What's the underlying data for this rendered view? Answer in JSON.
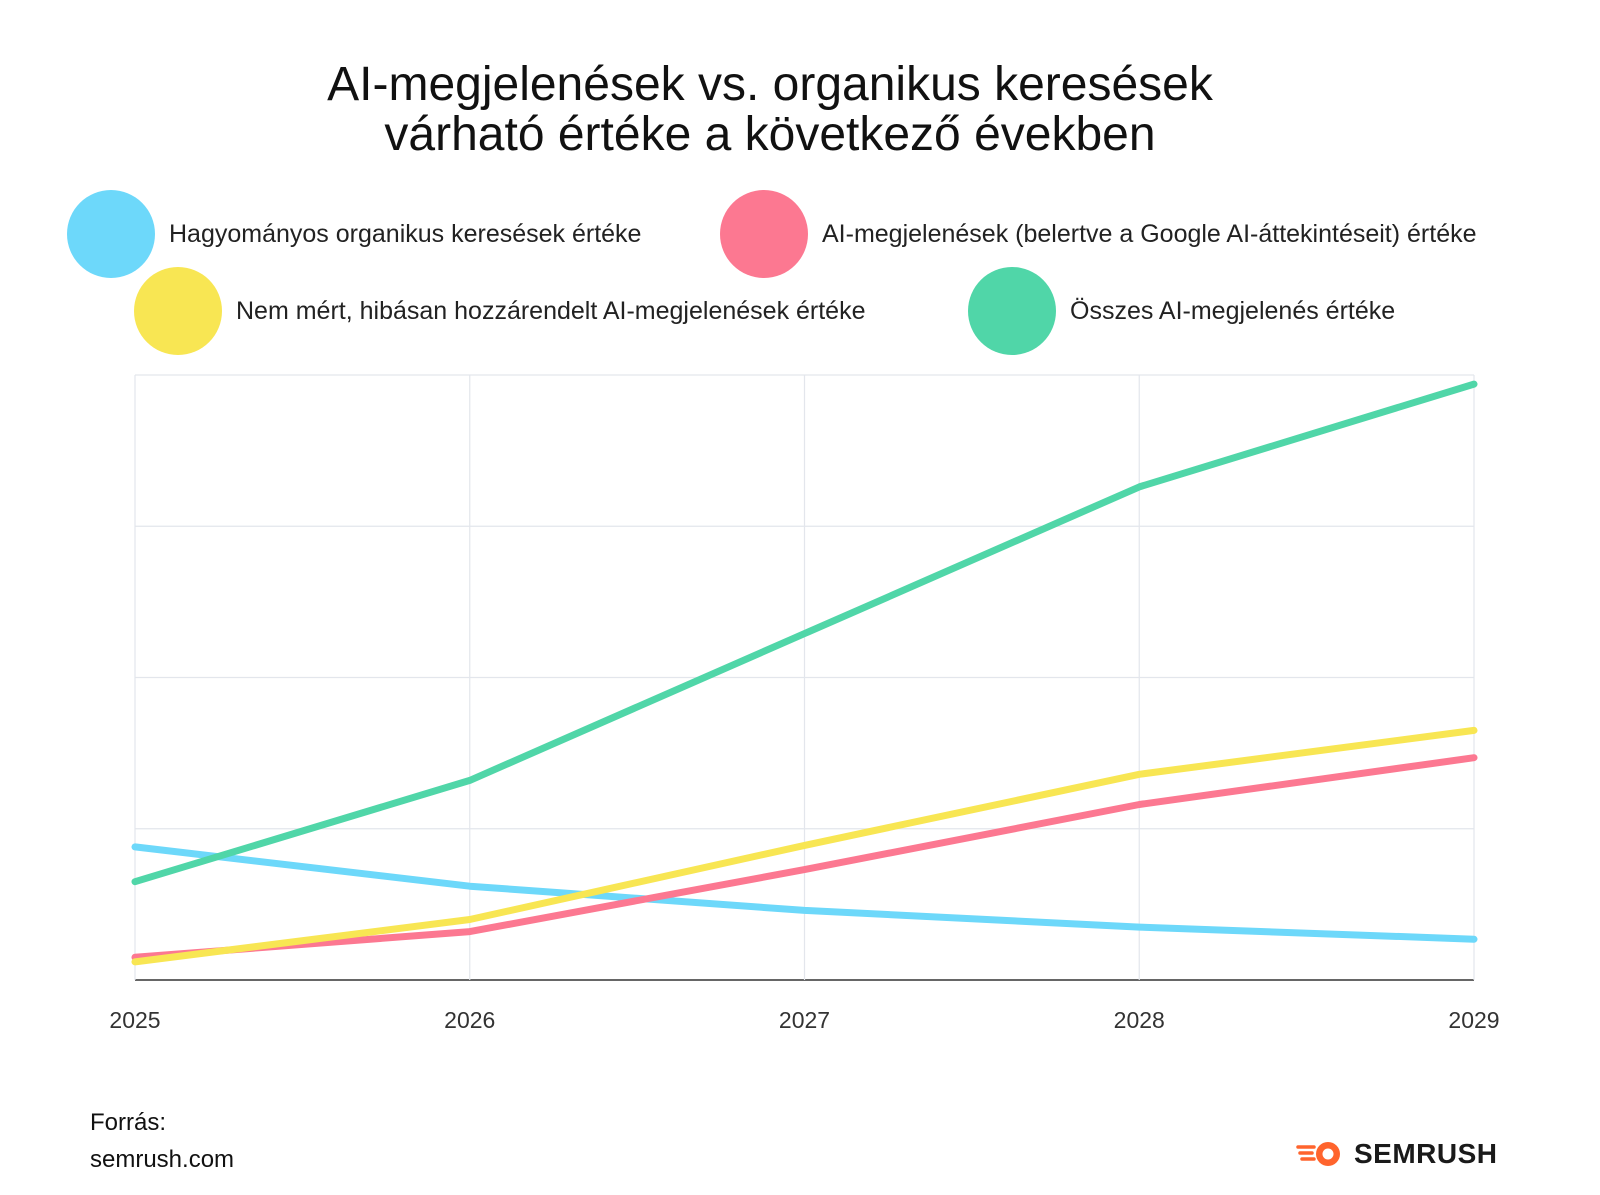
{
  "title": {
    "line1": "AI-megjelenések vs. organikus keresések",
    "line2": "várható értéke a következő években"
  },
  "legend": [
    {
      "label": "Hagyományos organikus keresések értéke",
      "color": "#6dd8fa"
    },
    {
      "label": "AI-megjelenések (belertve a Google AI-áttekintéseit) értéke",
      "color": "#fc7891"
    },
    {
      "label": "Nem mért, hibásan hozzárendelt AI-megjelenések értéke",
      "color": "#f8e653"
    },
    {
      "label": "Összes AI-megjelenés értéke",
      "color": "#50d6a8"
    }
  ],
  "chart_data": {
    "type": "line",
    "x": [
      "2025",
      "2026",
      "2027",
      "2028",
      "2029"
    ],
    "ylim": [
      0,
      4
    ],
    "grid": true,
    "legend_position": "top",
    "series": [
      {
        "name": "Hagyományos organikus keresések értéke",
        "color": "#6dd8fa",
        "values": [
          0.88,
          0.62,
          0.46,
          0.35,
          0.27
        ]
      },
      {
        "name": "AI-megjelenések (belertve a Google AI-áttekintéseit) értéke",
        "color": "#fc7891",
        "values": [
          0.15,
          0.32,
          0.73,
          1.16,
          1.47
        ]
      },
      {
        "name": "Nem mért, hibásan hozzárendelt AI-megjelenések értéke",
        "color": "#f8e653",
        "values": [
          0.12,
          0.4,
          0.89,
          1.36,
          1.65
        ]
      },
      {
        "name": "Összes AI-megjelenés értéke",
        "color": "#50d6a8",
        "values": [
          0.65,
          1.32,
          2.29,
          3.26,
          3.94
        ]
      }
    ]
  },
  "source": {
    "line1": "Forrás:",
    "line2": "semrush.com"
  },
  "brand": {
    "name": "SEMRUSH",
    "accent": "#ff642d"
  }
}
